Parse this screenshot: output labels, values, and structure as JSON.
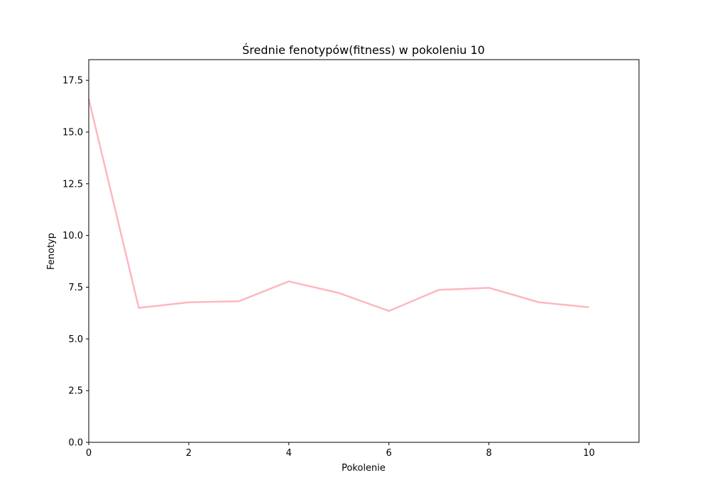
{
  "chart_data": {
    "type": "line",
    "title": "Średnie fenotypów(fitness) w pokoleniu 10",
    "xlabel": "Pokolenie",
    "ylabel": "Fenotyp",
    "xlim": [
      0,
      11
    ],
    "ylim": [
      0,
      18.5
    ],
    "xticks": [
      0,
      2,
      4,
      6,
      8,
      10
    ],
    "yticks": [
      0.0,
      2.5,
      5.0,
      7.5,
      10.0,
      12.5,
      15.0,
      17.5
    ],
    "xtick_labels": [
      "0",
      "2",
      "4",
      "6",
      "8",
      "10"
    ],
    "ytick_labels": [
      "0.0",
      "2.5",
      "5.0",
      "7.5",
      "10.0",
      "12.5",
      "15.0",
      "17.5"
    ],
    "grid": false,
    "series": [
      {
        "color": "#ffb6c1",
        "x": [
          0,
          1,
          2,
          3,
          4,
          5,
          6,
          7,
          8,
          9,
          10
        ],
        "y": [
          16.6,
          6.5,
          6.77,
          6.82,
          7.78,
          7.22,
          6.35,
          7.37,
          7.47,
          6.77,
          6.53
        ]
      }
    ]
  }
}
